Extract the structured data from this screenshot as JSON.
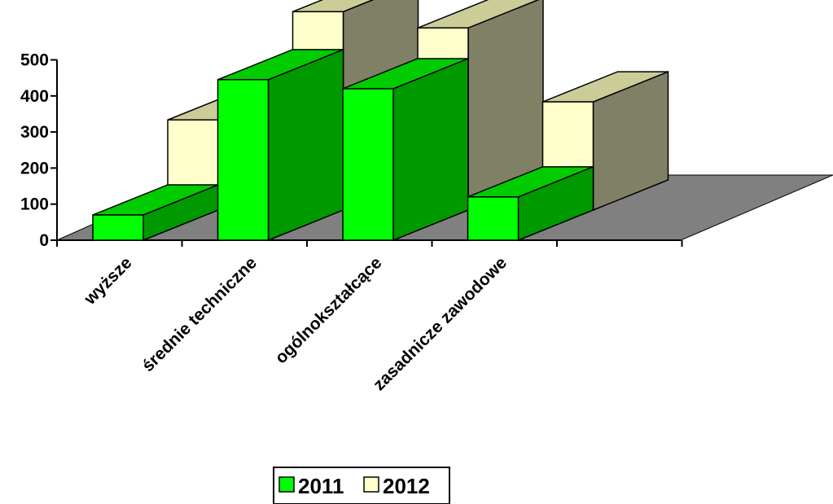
{
  "chart_data": {
    "type": "bar",
    "title": "",
    "xlabel": "",
    "ylabel": "",
    "categories": [
      "wyższe",
      "średnie techniczne",
      "ogólnokształcące",
      "zasadnicze zawodowe"
    ],
    "series": [
      {
        "name": "2011",
        "values": [
          70,
          445,
          420,
          120
        ],
        "color": "#00ff00"
      },
      {
        "name": "2012",
        "values": [
          250,
          550,
          505,
          300
        ],
        "color": "#ffffcc"
      }
    ],
    "ylim": [
      0,
      500
    ],
    "yticks": [
      "0",
      "100",
      "200",
      "300",
      "400",
      "500"
    ],
    "grid": false,
    "legend": "bottom",
    "style": "3d-clustered-depth",
    "colors": {
      "floor": "#808080",
      "front_2011": "#00ff00",
      "side_2011": "#009900",
      "top_2011": "#00cc00",
      "front_2012": "#ffffcc",
      "side_2012": "#808066",
      "top_2012": "#cccc99"
    }
  }
}
